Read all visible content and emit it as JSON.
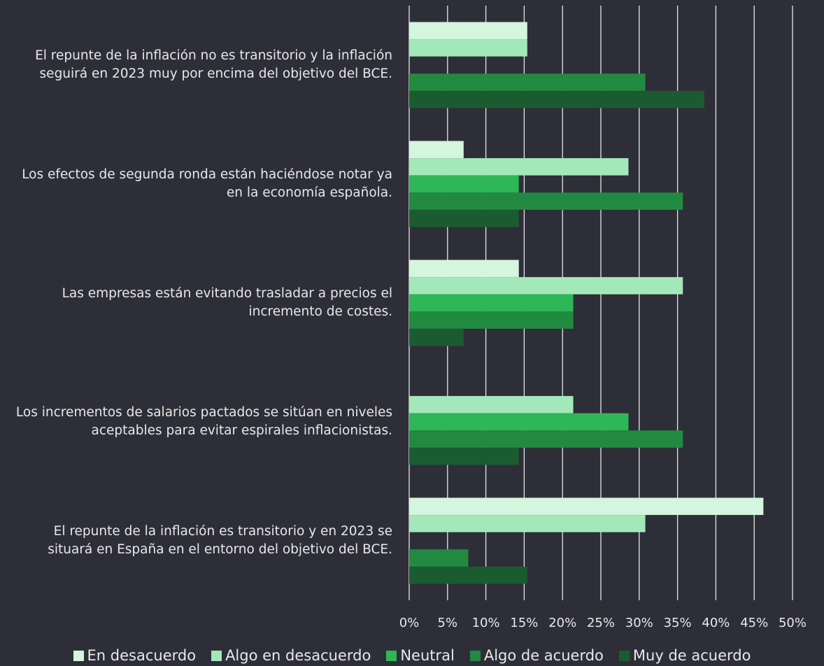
{
  "chart_data": {
    "type": "barh",
    "categories": [
      "El repunte de la inflación no es transitorio y la inflación seguirá en 2023 muy por encima del objetivo del BCE.",
      "Los efectos de segunda ronda están haciéndose notar ya en la economía española.",
      "Las empresas están evitando trasladar a precios el incremento de costes.",
      "Los incrementos de salarios pactados se sitúan en niveles aceptables para evitar espirales inflacionistas.",
      "El repunte de la inflación es transitorio y en 2023 se situará en España en el entorno del objetivo del BCE."
    ],
    "series": [
      {
        "name": "En desacuerdo",
        "color": "#d4f5de",
        "values": [
          15.4,
          7.1,
          14.3,
          0,
          46.2
        ]
      },
      {
        "name": "Algo en desacuerdo",
        "color": "#a3e8b9",
        "values": [
          15.4,
          28.6,
          35.7,
          21.4,
          30.8
        ]
      },
      {
        "name": "Neutral",
        "color": "#2db757",
        "values": [
          0,
          14.3,
          21.4,
          28.6,
          0
        ]
      },
      {
        "name": "Algo de acuerdo",
        "color": "#228a40",
        "values": [
          30.8,
          35.7,
          21.4,
          35.7,
          7.7
        ]
      },
      {
        "name": "Muy de acuerdo",
        "color": "#1a5c30",
        "values": [
          38.5,
          14.3,
          7.1,
          14.3,
          15.4
        ]
      }
    ],
    "xlim": [
      0,
      50
    ],
    "xticks": [
      {
        "value": 0,
        "label": "0%"
      },
      {
        "value": 5,
        "label": "5%"
      },
      {
        "value": 10,
        "label": "10%"
      },
      {
        "value": 15,
        "label": "15%"
      },
      {
        "value": 20,
        "label": "20%"
      },
      {
        "value": 25,
        "label": "25%"
      },
      {
        "value": 30,
        "label": "30%"
      },
      {
        "value": 35,
        "label": "35%"
      },
      {
        "value": 40,
        "label": "40%"
      },
      {
        "value": 45,
        "label": "45%"
      },
      {
        "value": 50,
        "label": "50%"
      }
    ],
    "grid": true,
    "legend": "bottom"
  }
}
